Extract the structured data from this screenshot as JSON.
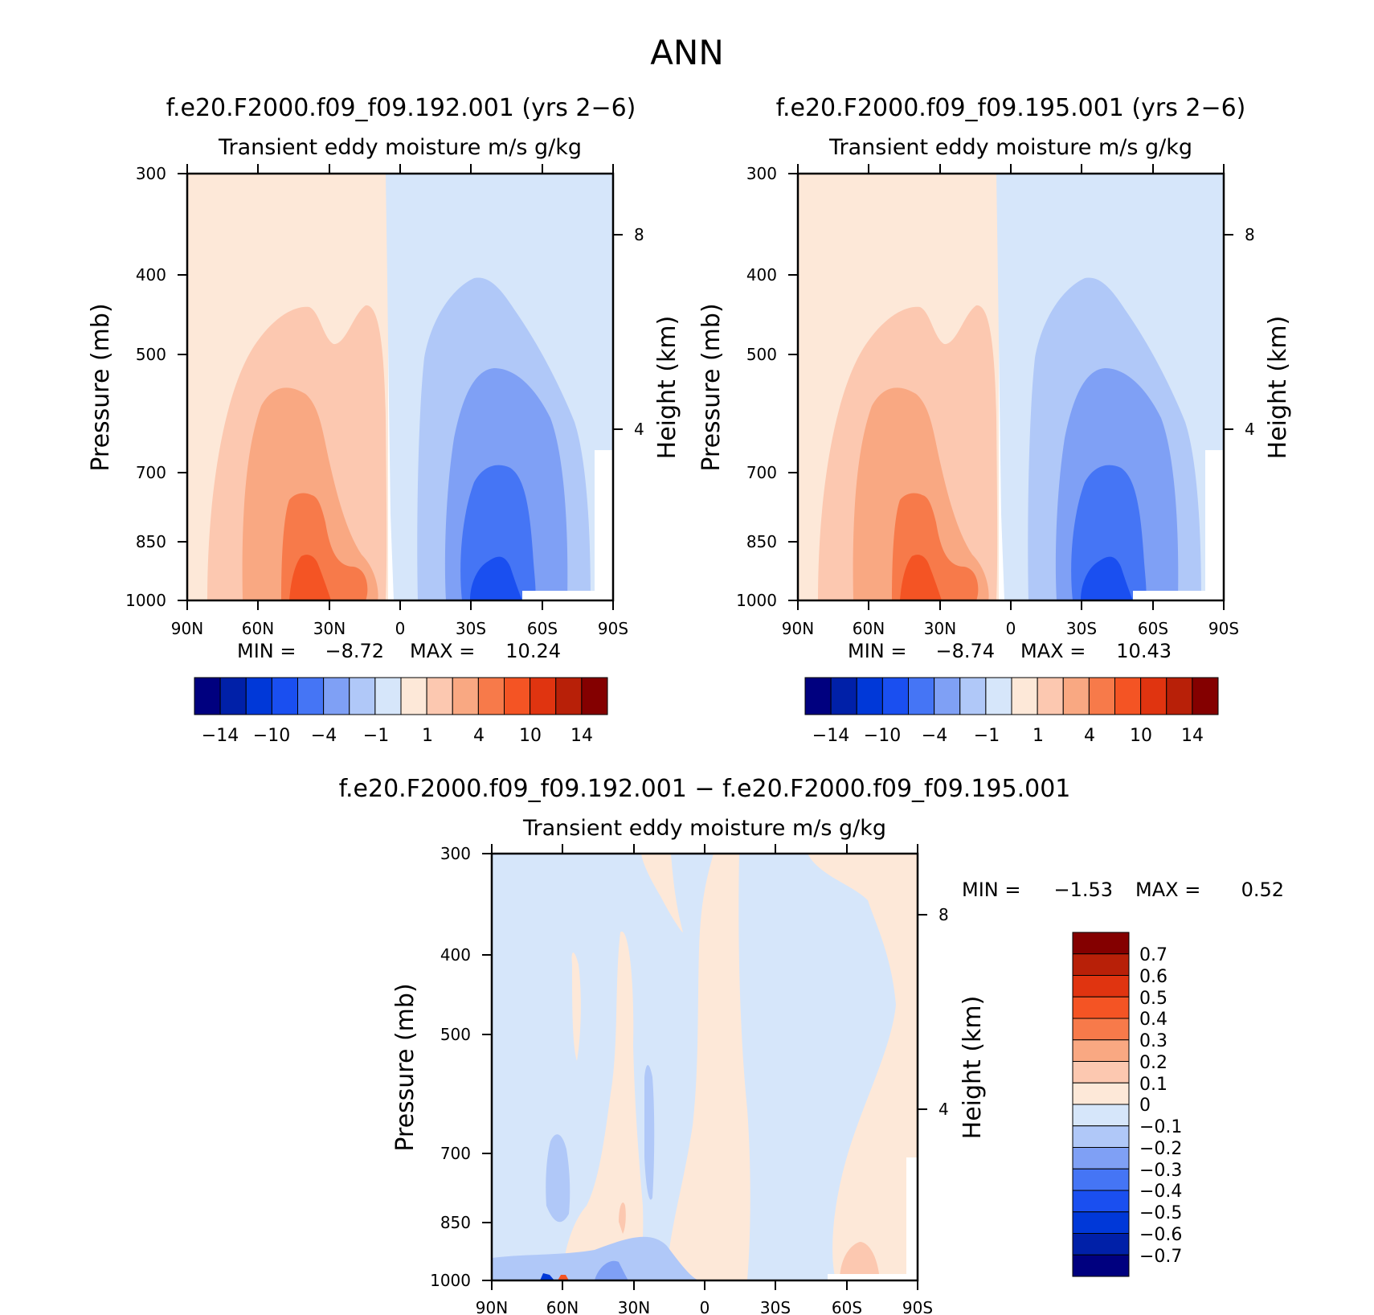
{
  "figure": {
    "title": "ANN"
  },
  "colors": {
    "main_scale": [
      "#00007f",
      "#0020a8",
      "#0038d8",
      "#1a4ff0",
      "#4575f5",
      "#7fa0f5",
      "#b0c8f8",
      "#d6e6fa",
      "#fde8d8",
      "#fcc8b0",
      "#f9a882",
      "#f77a4a",
      "#f45424",
      "#e03410",
      "#b82008",
      "#840000"
    ],
    "diff_scale": [
      "#00007f",
      "#0020a8",
      "#0038d8",
      "#1a4ff0",
      "#4575f5",
      "#7fa0f5",
      "#b0c8f8",
      "#d6e6fa",
      "#fde8d8",
      "#fcc8b0",
      "#f9a882",
      "#f77a4a",
      "#f45424",
      "#e03410",
      "#b82008",
      "#840000"
    ]
  },
  "chart_data": [
    {
      "type": "heatmap",
      "id": "case1",
      "title": "f.e20.F2000.f09_f09.192.001 (yrs 2−6)",
      "subtitle": "Transient eddy moisture m/s g/kg",
      "ylabel": "Pressure (mb)",
      "y2label": "Height (km)",
      "x_ticks": [
        "90N",
        "60N",
        "30N",
        "0",
        "30S",
        "60S",
        "90S"
      ],
      "y_ticks": [
        "300",
        "400",
        "500",
        "700",
        "850",
        "1000"
      ],
      "y2_ticks": [
        "8",
        "4"
      ],
      "min_label": "MIN =",
      "min_value": "−8.72",
      "max_label": "MAX =",
      "max_value": "10.24",
      "colorbar_labels": [
        "−14",
        "−10",
        "−4",
        "−1",
        "1",
        "4",
        "10",
        "14"
      ],
      "contour_levels": [
        -14,
        -12,
        -10,
        -7,
        -4,
        -2,
        -1,
        0,
        1,
        2,
        4,
        7,
        10,
        12,
        14
      ],
      "ylim": [
        1000,
        300
      ],
      "xlim": [
        "90N",
        "90S"
      ]
    },
    {
      "type": "heatmap",
      "id": "case2",
      "title": "f.e20.F2000.f09_f09.195.001 (yrs 2−6)",
      "subtitle": "Transient eddy moisture m/s g/kg",
      "ylabel": "Pressure (mb)",
      "y2label": "Height (km)",
      "x_ticks": [
        "90N",
        "60N",
        "30N",
        "0",
        "30S",
        "60S",
        "90S"
      ],
      "y_ticks": [
        "300",
        "400",
        "500",
        "700",
        "850",
        "1000"
      ],
      "y2_ticks": [
        "8",
        "4"
      ],
      "min_label": "MIN =",
      "min_value": "−8.74",
      "max_label": "MAX =",
      "max_value": "10.43",
      "colorbar_labels": [
        "−14",
        "−10",
        "−4",
        "−1",
        "1",
        "4",
        "10",
        "14"
      ],
      "contour_levels": [
        -14,
        -12,
        -10,
        -7,
        -4,
        -2,
        -1,
        0,
        1,
        2,
        4,
        7,
        10,
        12,
        14
      ],
      "ylim": [
        1000,
        300
      ],
      "xlim": [
        "90N",
        "90S"
      ]
    },
    {
      "type": "heatmap",
      "id": "diff",
      "title": "f.e20.F2000.f09_f09.192.001 − f.e20.F2000.f09_f09.195.001",
      "subtitle": "Transient eddy moisture m/s g/kg",
      "ylabel": "Pressure (mb)",
      "y2label": "Height (km)",
      "x_ticks": [
        "90N",
        "60N",
        "30N",
        "0",
        "30S",
        "60S",
        "90S"
      ],
      "y_ticks": [
        "300",
        "400",
        "500",
        "700",
        "850",
        "1000"
      ],
      "y2_ticks": [
        "8",
        "4"
      ],
      "min_label": "MIN =",
      "min_value": "−1.53",
      "max_label": "MAX =",
      "max_value": "0.52",
      "colorbar_labels": [
        "0.7",
        "0.6",
        "0.5",
        "0.4",
        "0.3",
        "0.2",
        "0.1",
        "0",
        "−0.1",
        "−0.2",
        "−0.3",
        "−0.4",
        "−0.5",
        "−0.6",
        "−0.7"
      ],
      "contour_levels": [
        -0.7,
        -0.6,
        -0.5,
        -0.4,
        -0.3,
        -0.2,
        -0.1,
        0,
        0.1,
        0.2,
        0.3,
        0.4,
        0.5,
        0.6,
        0.7
      ],
      "ylim": [
        1000,
        300
      ],
      "xlim": [
        "90N",
        "90S"
      ]
    }
  ]
}
